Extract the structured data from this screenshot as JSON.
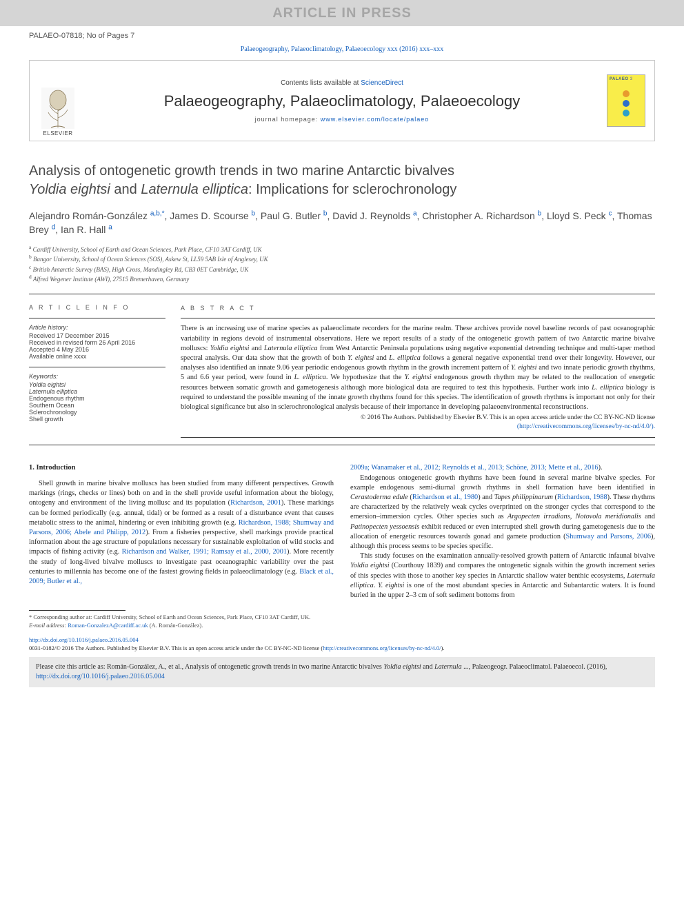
{
  "colors": {
    "link": "#1560bd",
    "text": "#2a2a2a",
    "muted": "#555555",
    "watermark_bg": "#d5d5d5",
    "watermark_fg": "#a6a6a6",
    "cover_bg": "#f9ed4a",
    "cover_label": "#3a5c8c",
    "cover_dot1": "#e89a2e",
    "cover_dot2": "#2e6fc9",
    "cover_dot3": "#2e9fc9",
    "citebox_bg": "#e9e9e9",
    "rule": "#333333"
  },
  "watermark": "ARTICLE IN PRESS",
  "doc_id": "PALAEO-07818; No of Pages 7",
  "journal_ref_prefix": "Palaeogeography, Palaeoclimatology, Palaeoecology xxx (2016) xxx–xxx",
  "header": {
    "contents_prefix": "Contents lists available at ",
    "contents_link": "ScienceDirect",
    "journal_title": "Palaeogeography, Palaeoclimatology, Palaeoecology",
    "homepage_prefix": "journal homepage: ",
    "homepage_url": "www.elsevier.com/locate/palaeo",
    "elsevier_label": "ELSEVIER",
    "cover_label": "PALAEO",
    "cover_suffix": "3"
  },
  "title": {
    "line1": "Analysis of ontogenetic growth trends in two marine Antarctic bivalves",
    "italic1": "Yoldia eightsi",
    "mid": " and ",
    "italic2": "Laternula elliptica",
    "line2_tail": ": Implications for sclerochronology"
  },
  "authors_html": "Alejandro Román-González <sup class=\"aff\">a,b,</sup><sup class=\"aff\">*</sup>, James D. Scourse <sup class=\"aff\">b</sup>, Paul G. Butler <sup class=\"aff\">b</sup>, David J. Reynolds <sup class=\"aff\">a</sup>, Christopher A. Richardson <sup class=\"aff\">b</sup>, Lloyd S. Peck <sup class=\"aff\">c</sup>, Thomas Brey <sup class=\"aff\">d</sup>, Ian R. Hall <sup class=\"aff\">a</sup>",
  "affiliations": [
    "a  Cardiff University, School of Earth and Ocean Sciences, Park Place, CF10 3AT Cardiff, UK",
    "b  Bangor University, School of Ocean Sciences (SOS), Askew St, LL59 5AB Isle of Anglesey, UK",
    "c  British Antarctic Survey (BAS), High Cross, Mandingley Rd, CB3 0ET Cambridge, UK",
    "d  Alfred Wegener Institute (AWI), 27515 Bremerhaven, Germany"
  ],
  "info": {
    "head": "A R T I C L E   I N F O",
    "history_label": "Article history:",
    "history": [
      "Received 17 December 2015",
      "Received in revised form 26 April 2016",
      "Accepted 4 May 2016",
      "Available online xxxx"
    ],
    "keywords_label": "Keywords:",
    "keywords": [
      "Yoldia eightsi",
      "Laternula elliptica",
      "Endogenous rhythm",
      "Southern Ocean",
      "Sclerochronology",
      "Shell growth"
    ]
  },
  "abstract": {
    "head": "A B S T R A C T",
    "body_html": "There is an increasing use of marine species as palaeoclimate recorders for the marine realm. These archives provide novel baseline records of past oceanographic variability in regions devoid of instrumental observations. Here we report results of a study of the ontogenetic growth pattern of two Antarctic marine bivalve molluscs: <span class=\"italic\">Yoldia eightsi</span> and <span class=\"italic\">Laternula elliptica</span> from West Antarctic Peninsula populations using negative exponential detrending technique and multi-taper method spectral analysis. Our data show that the growth of both <span class=\"italic\">Y. eightsi</span> and <span class=\"italic\">L. elliptica</span> follows a general negative exponential trend over their longevity. However, our analyses also identified an innate 9.06 year periodic endogenous growth rhythm in the growth increment pattern of <span class=\"italic\">Y. eightsi</span> and two innate periodic growth rhythms, 5 and 6.6 year period, were found in <span class=\"italic\">L. elliptica</span>. We hypothesize that the <span class=\"italic\">Y. eightsi</span> endogenous growth rhythm may be related to the reallocation of energetic resources between somatic growth and gametogenesis although more biological data are required to test this hypothesis. Further work into <span class=\"italic\">L. elliptica</span> biology is required to understand the possible meaning of the innate growth rhythms found for this species. The identification of growth rhythms is important not only for their biological significance but also in sclerochronological analysis because of their importance in developing palaeoenvironmental reconstructions.",
    "copyright": "© 2016 The Authors. Published by Elsevier B.V. This is an open access article under the CC BY-NC-ND license",
    "license_url_display": "(http://creativecommons.org/licenses/by-nc-nd/4.0/)."
  },
  "intro": {
    "head": "1. Introduction",
    "col1_html": "Shell growth in marine bivalve molluscs has been studied from many different perspectives. Growth markings (rings, checks or lines) both on and in the shell provide useful information about the biology, ontogeny and environment of the living mollusc and its population (<a class=\"ref\">Richardson, 2001</a>). These markings can be formed periodically (e.g. annual, tidal) or be formed as a result of a disturbance event that causes metabolic stress to the animal, hindering or even inhibiting growth (e.g. <a class=\"ref\">Richardson, 1988; Shumway and Parsons, 2006; Abele and Philipp, 2012</a>). From a fisheries perspective, shell markings provide practical information about the age structure of populations necessary for sustainable exploitation of wild stocks and impacts of fishing activity (e.g. <a class=\"ref\">Richardson and Walker, 1991; Ramsay et al., 2000, 2001</a>). More recently the study of long-lived bivalve molluscs to investigate past oceanographic variability over the past centuries to millennia has become one of the fastest growing fields in palaeoclimatology (e.g. <a class=\"ref\">Black et al., 2009; Butler et al.,</a>",
    "col2_top_html": "<a class=\"ref\">2009a; Wanamaker et al., 2012; Reynolds et al., 2013; Schöne, 2013; Mette et al., 2016</a>).",
    "col2_p2_html": "Endogenous ontogenetic growth rhythms have been found in several marine bivalve species. For example endogenous semi-diurnal growth rhythms in shell formation have been identified in <span class=\"italic\">Cerastoderma edule</span> (<a class=\"ref\">Richardson et al., 1980</a>) and <span class=\"italic\">Tapes philippinarum</span> (<a class=\"ref\">Richardson, 1988</a>). These rhythms are characterized by the relatively weak cycles overprinted on the stronger cycles that correspond to the emersion–immersion cycles. Other species such as <span class=\"italic\">Argopecten irradians</span>, <span class=\"italic\">Notovola meridionalis</span> and <span class=\"italic\">Patinopecten yessoensis</span> exhibit reduced or even interrupted shell growth during gametogenesis due to the allocation of energetic resources towards gonad and gamete production (<a class=\"ref\">Shumway and Parsons, 2006</a>), although this process seems to be species specific.",
    "col2_p3_html": "This study focuses on the examination annually-resolved growth pattern of Antarctic infaunal bivalve <span class=\"italic\">Yoldia eightsi</span> (Courthouy 1839) and compares the ontogenetic signals within the growth increment series of this species with those to another key species in Antarctic shallow water benthic ecosystems, <span class=\"italic\">Laternula elliptica</span>. <span class=\"italic\">Y. eightsi</span> is one of the most abundant species in Antarctic and Subantarctic waters. It is found buried in the upper 2–3 cm of soft sediment bottoms from"
  },
  "footnotes": {
    "corresp": "* Corresponding author at: Cardiff University, School of Earth and Ocean Sciences, Park Place, CF10 3AT Cardiff, UK.",
    "email_label": "E-mail address: ",
    "email": "Roman-GonzalezA@cardiff.ac.uk",
    "email_tail": " (A. Román-González)."
  },
  "doi": {
    "url": "http://dx.doi.org/10.1016/j.palaeo.2016.05.004",
    "line2": "0031-0182/© 2016 The Authors. Published by Elsevier B.V. This is an open access article under the CC BY-NC-ND license (",
    "license_url": "http://creativecommons.org/licenses/by-nc-nd/4.0/",
    "line2_tail": ")."
  },
  "cite": {
    "prefix": "Please cite this article as: Román-González, A., et al., Analysis of ontogenetic growth trends in two marine Antarctic bivalves ",
    "italic1": "Yoldia eightsi",
    "mid": " and ",
    "italic2": "Laternula",
    "tail1": " ..., Palaeogeogr. Palaeoclimatol. Palaeoecol. (2016), ",
    "url": "http://dx.doi.org/10.1016/j.palaeo.2016.05.004"
  }
}
